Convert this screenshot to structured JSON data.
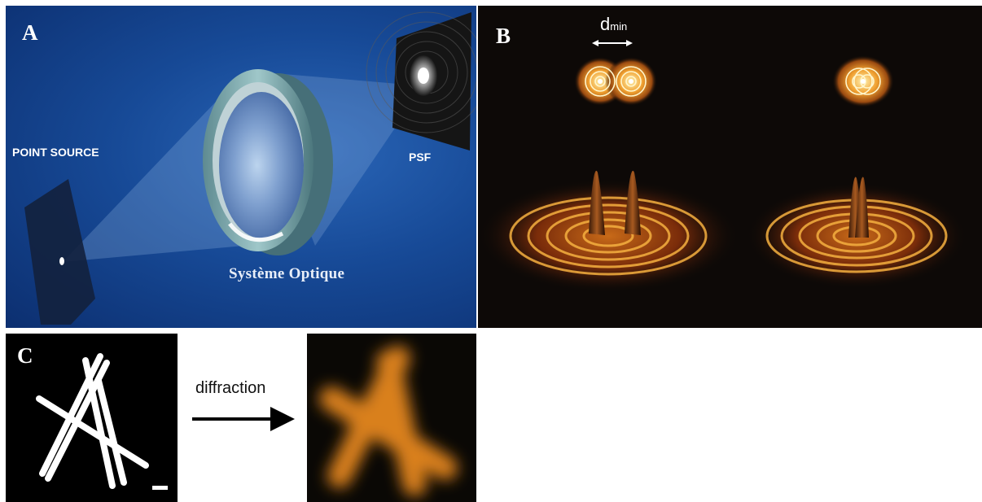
{
  "panel_a": {
    "letter": "A",
    "point_source_label": "POINT SOURCE",
    "psf_label": "PSF",
    "system_label": "Système Optique"
  },
  "panel_b": {
    "letter": "B",
    "dmin_main": "d",
    "dmin_sub": "min"
  },
  "panel_c": {
    "letter": "C",
    "arrow_label": "diffraction"
  },
  "colors": {
    "blue_background": "#174a97",
    "airy_orange": "#f0a030",
    "blur_orange": "#d9801e"
  },
  "icons": [
    "lens-icon",
    "airy-disk-icon",
    "arrow-right-icon"
  ]
}
